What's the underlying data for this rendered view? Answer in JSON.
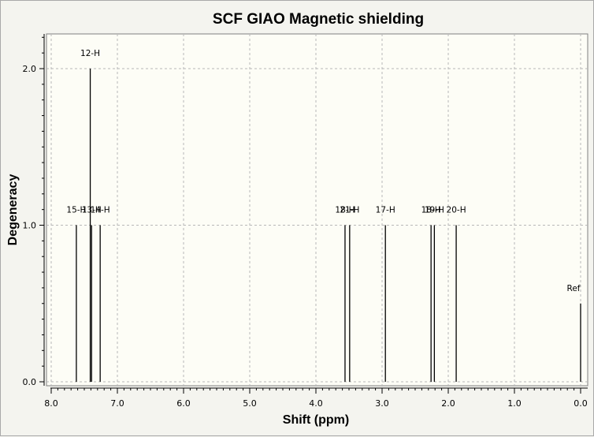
{
  "window": {
    "background": "#f3f3ee",
    "plot_background": "#fdfdf6",
    "grid_color": "#b8b8b8"
  },
  "chart_data": {
    "type": "bar",
    "title": "SCF GIAO Magnetic shielding",
    "xlabel": "Shift (ppm)",
    "ylabel": "Degeneracy",
    "xlim": [
      8.0,
      0.0
    ],
    "ylim": [
      0.0,
      2.2
    ],
    "x_reversed": true,
    "grid": true,
    "x_ticks": [
      "8.0",
      "7.0",
      "6.0",
      "5.0",
      "4.0",
      "3.0",
      "2.0",
      "1.0",
      "0.0"
    ],
    "x_tick_values": [
      8.0,
      7.0,
      6.0,
      5.0,
      4.0,
      3.0,
      2.0,
      1.0,
      0.0
    ],
    "y_ticks": [
      "0.0",
      "1.0",
      "2.0"
    ],
    "y_tick_values": [
      0.0,
      1.0,
      2.0
    ],
    "peaks": [
      {
        "label": "15-H",
        "x": 7.62,
        "y": 1.0
      },
      {
        "label": "12-H",
        "x": 7.41,
        "y": 2.0
      },
      {
        "label": "13-H",
        "x": 7.39,
        "y": 1.0
      },
      {
        "label": "14-H",
        "x": 7.26,
        "y": 1.0
      },
      {
        "label": "18-H",
        "x": 3.56,
        "y": 1.0
      },
      {
        "label": "21-H",
        "x": 3.49,
        "y": 1.0
      },
      {
        "label": "17-H",
        "x": 2.95,
        "y": 1.0
      },
      {
        "label": "18-H",
        "x": 2.26,
        "y": 1.0
      },
      {
        "label": "19-H",
        "x": 2.21,
        "y": 1.0
      },
      {
        "label": "20-H",
        "x": 1.88,
        "y": 1.0
      },
      {
        "label": "Ref",
        "x": 0.0,
        "y": 0.5
      }
    ]
  }
}
